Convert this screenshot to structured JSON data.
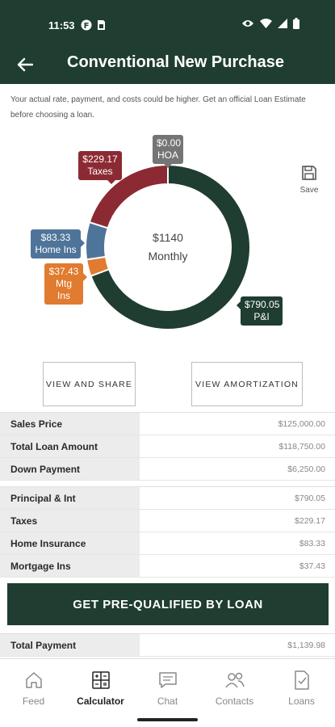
{
  "status_bar": {
    "time": "11:53"
  },
  "header": {
    "title": "Conventional New Purchase",
    "back_icon": "arrow-left-icon"
  },
  "disclaimer": "Your actual rate, payment, and costs could be higher. Get an official Loan Estimate before choosing a loan.",
  "chart_data": {
    "type": "pie",
    "donut": true,
    "center_total": "$1140",
    "center_label": "Monthly",
    "slices": [
      {
        "label": "P&I",
        "display": "$790.05",
        "value": 790.05,
        "color": "#1f3d30"
      },
      {
        "label": "Mtg Ins",
        "display": "$37.43",
        "value": 37.43,
        "color": "#e07b2f"
      },
      {
        "label": "Home Ins",
        "display": "$83.33",
        "value": 83.33,
        "color": "#4f7499"
      },
      {
        "label": "Taxes",
        "display": "$229.17",
        "value": 229.17,
        "color": "#8c2a33"
      },
      {
        "label": "HOA",
        "display": "$0.00",
        "value": 0.0,
        "color": "#757575"
      }
    ]
  },
  "save": {
    "label": "Save",
    "icon": "floppy-disk-icon"
  },
  "buttons": {
    "share": "VIEW AND SHARE",
    "amortization": "VIEW AMORTIZATION"
  },
  "loan_table": [
    {
      "label": "Sales Price",
      "value": "$125,000.00"
    },
    {
      "label": "Total Loan Amount",
      "value": "$118,750.00"
    },
    {
      "label": "Down Payment",
      "value": "$6,250.00"
    }
  ],
  "payment_table": [
    {
      "label": "Principal & Int",
      "value": "$790.05"
    },
    {
      "label": "Taxes",
      "value": "$229.17"
    },
    {
      "label": "Home Insurance",
      "value": "$83.33"
    },
    {
      "label": "Mortgage Ins",
      "value": "$37.43"
    }
  ],
  "cta": {
    "label": "GET PRE-QUALIFIED BY LOAN"
  },
  "total": {
    "label": "Total Payment",
    "value": "$1,139.98"
  },
  "nav": [
    {
      "label": "Feed",
      "icon": "home-icon",
      "active": false
    },
    {
      "label": "Calculator",
      "icon": "calculator-icon",
      "active": true
    },
    {
      "label": "Chat",
      "icon": "chat-icon",
      "active": false
    },
    {
      "label": "Contacts",
      "icon": "contacts-icon",
      "active": false
    },
    {
      "label": "Loans",
      "icon": "loan-document-icon",
      "active": false
    }
  ],
  "colors": {
    "brand": "#1f3d30",
    "taxes": "#8c2a33",
    "home_ins": "#4f7499",
    "mtg_ins": "#e07b2f",
    "hoa": "#757575"
  }
}
